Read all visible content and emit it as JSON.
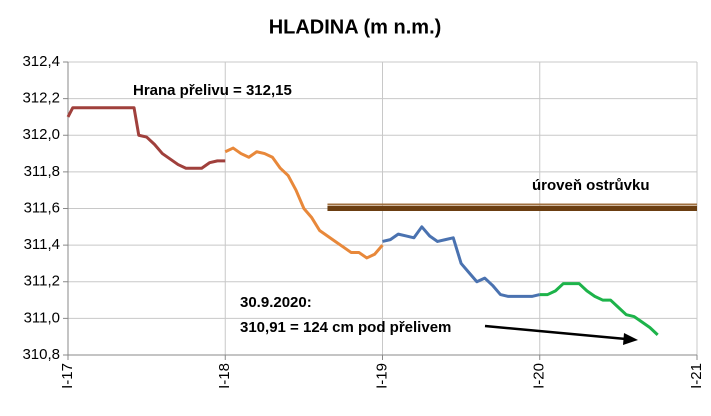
{
  "chart_data": {
    "type": "line",
    "title": "HLADINA  (m n.m.)",
    "xlim": [
      2017,
      2021
    ],
    "xticks": [
      {
        "value": 2017,
        "label": "I-17"
      },
      {
        "value": 2018,
        "label": "I-18"
      },
      {
        "value": 2019,
        "label": "I-19"
      },
      {
        "value": 2020,
        "label": "I-20"
      },
      {
        "value": 2021,
        "label": "I-21"
      }
    ],
    "ylim": [
      310.8,
      312.4
    ],
    "yticks": [
      {
        "value": 310.8,
        "label": "310,8"
      },
      {
        "value": 311.0,
        "label": "311,0"
      },
      {
        "value": 311.2,
        "label": "311,2"
      },
      {
        "value": 311.4,
        "label": "311,4"
      },
      {
        "value": 311.6,
        "label": "311,6"
      },
      {
        "value": 311.8,
        "label": "311,8"
      },
      {
        "value": 312.0,
        "label": "312,0"
      },
      {
        "value": 312.2,
        "label": "312,2"
      },
      {
        "value": 312.4,
        "label": "312,4"
      }
    ],
    "grid": true,
    "series": [
      {
        "color": "#a0403c",
        "x": [
          2017.0,
          2017.03,
          2017.42,
          2017.45,
          2017.5,
          2017.55,
          2017.6,
          2017.65,
          2017.7,
          2017.75,
          2017.8,
          2017.85,
          2017.9,
          2017.95,
          2018.0
        ],
        "values": [
          312.1,
          312.15,
          312.15,
          312.0,
          311.99,
          311.95,
          311.9,
          311.87,
          311.84,
          311.82,
          311.82,
          311.82,
          311.85,
          311.86,
          311.86
        ]
      },
      {
        "color": "#e8883a",
        "x": [
          2018.0,
          2018.05,
          2018.1,
          2018.15,
          2018.2,
          2018.25,
          2018.3,
          2018.35,
          2018.4,
          2018.45,
          2018.5,
          2018.55,
          2018.6,
          2018.65,
          2018.7,
          2018.75,
          2018.8,
          2018.85,
          2018.9,
          2018.95,
          2019.0
        ],
        "values": [
          311.91,
          311.93,
          311.9,
          311.88,
          311.91,
          311.9,
          311.88,
          311.82,
          311.78,
          311.7,
          311.6,
          311.55,
          311.48,
          311.45,
          311.42,
          311.39,
          311.36,
          311.36,
          311.33,
          311.35,
          311.4
        ]
      },
      {
        "color": "#4a72b0",
        "x": [
          2019.0,
          2019.05,
          2019.1,
          2019.15,
          2019.2,
          2019.25,
          2019.3,
          2019.35,
          2019.4,
          2019.45,
          2019.5,
          2019.55,
          2019.6,
          2019.65,
          2019.7,
          2019.75,
          2019.8,
          2019.85,
          2019.9,
          2019.95,
          2020.0
        ],
        "values": [
          311.42,
          311.43,
          311.46,
          311.45,
          311.44,
          311.5,
          311.45,
          311.42,
          311.43,
          311.44,
          311.3,
          311.25,
          311.2,
          311.22,
          311.18,
          311.13,
          311.12,
          311.12,
          311.12,
          311.12,
          311.13
        ]
      },
      {
        "color": "#1db34a",
        "x": [
          2020.0,
          2020.05,
          2020.1,
          2020.15,
          2020.2,
          2020.25,
          2020.3,
          2020.35,
          2020.4,
          2020.45,
          2020.5,
          2020.55,
          2020.6,
          2020.65,
          2020.7,
          2020.75
        ],
        "values": [
          311.13,
          311.13,
          311.15,
          311.19,
          311.19,
          311.19,
          311.15,
          311.12,
          311.1,
          311.1,
          311.06,
          311.02,
          311.01,
          310.98,
          310.95,
          310.91
        ]
      }
    ],
    "island": {
      "label": "úroveň ostrůvku",
      "x": [
        2018.65,
        2021
      ],
      "y": 311.6,
      "color": "#6b3e12"
    },
    "annotations": [
      "Hrana přelivu = 312,15",
      "30.9.2020:",
      "310,91 = 124 cm pod přelivem"
    ]
  }
}
